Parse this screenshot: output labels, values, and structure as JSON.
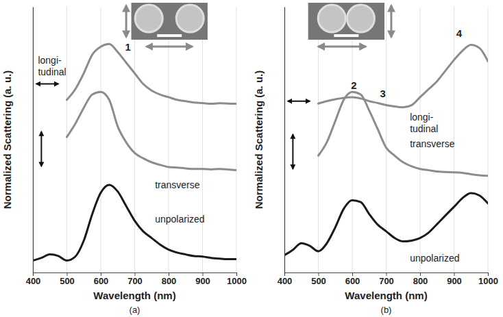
{
  "chart_data": [
    {
      "type": "line",
      "panel_label": "(a)",
      "x_label": "Wavelength (nm)",
      "y_label": "Normalized Scattering (a. u.)",
      "x": [
        400,
        425,
        450,
        475,
        500,
        525,
        550,
        575,
        600,
        625,
        650,
        675,
        700,
        725,
        750,
        775,
        800,
        825,
        850,
        875,
        900,
        925,
        950,
        975,
        1000
      ],
      "series": [
        {
          "name": "longi-tudinal",
          "color": "#8c8c8c",
          "values": [
            null,
            null,
            null,
            null,
            6.5,
            6.9,
            7.5,
            8.2,
            8.5,
            8.6,
            8.3,
            7.9,
            7.5,
            7.1,
            6.85,
            6.7,
            6.6,
            6.5,
            6.45,
            6.4,
            6.38,
            6.35,
            6.37,
            6.36,
            6.35
          ]
        },
        {
          "name": "transverse",
          "color": "#8c8c8c",
          "values": [
            null,
            null,
            null,
            null,
            5.1,
            5.6,
            6.2,
            6.7,
            6.8,
            6.5,
            5.5,
            4.9,
            4.5,
            4.3,
            4.15,
            4.05,
            3.97,
            3.95,
            3.92,
            3.9,
            3.9,
            3.88,
            3.9,
            3.88,
            3.85
          ]
        },
        {
          "name": "unpolarized",
          "color": "#1a1a1a",
          "values": [
            0.45,
            0.55,
            0.68,
            0.62,
            0.45,
            0.6,
            1.2,
            2.2,
            3.0,
            3.3,
            3.05,
            2.5,
            1.95,
            1.55,
            1.3,
            1.05,
            0.86,
            0.75,
            0.68,
            0.62,
            0.6,
            0.55,
            0.52,
            0.5,
            0.5
          ]
        }
      ],
      "xlim": [
        400,
        1000
      ],
      "xticks": [
        400,
        500,
        600,
        700,
        800,
        900,
        1000
      ],
      "ylim": [
        0,
        10
      ],
      "grid": true,
      "tick_labels": "x",
      "line_style": "solid",
      "annotations": [
        {
          "text": "1",
          "x": 680,
          "y": 8.5
        }
      ]
    },
    {
      "type": "line",
      "panel_label": "(b)",
      "x_label": "Wavelength (nm)",
      "y_label": "Normalized Scattering (a. u.)",
      "x": [
        400,
        425,
        450,
        475,
        500,
        525,
        550,
        575,
        600,
        625,
        650,
        675,
        700,
        725,
        750,
        775,
        800,
        825,
        850,
        875,
        900,
        925,
        950,
        975,
        1000
      ],
      "series": [
        {
          "name": "longi-tudinal",
          "color": "#8c8c8c",
          "values": [
            null,
            null,
            null,
            null,
            6.36,
            6.45,
            6.52,
            6.57,
            6.6,
            6.55,
            6.45,
            6.38,
            6.3,
            6.25,
            6.22,
            6.3,
            6.6,
            6.9,
            7.2,
            7.6,
            8.0,
            8.35,
            8.57,
            8.45,
            7.95
          ]
        },
        {
          "name": "transverse",
          "color": "#8c8c8c",
          "values": [
            null,
            null,
            null,
            null,
            4.4,
            4.9,
            5.7,
            6.5,
            6.8,
            6.7,
            6.1,
            5.4,
            4.7,
            4.4,
            4.15,
            4.0,
            3.9,
            3.85,
            3.8,
            3.78,
            3.77,
            3.75,
            3.7,
            3.66,
            3.64
          ]
        },
        {
          "name": "unpolarized",
          "color": "#1a1a1a",
          "values": [
            0.65,
            0.85,
            1.1,
            1.0,
            0.8,
            1.1,
            1.7,
            2.4,
            2.72,
            2.65,
            2.2,
            1.8,
            1.55,
            1.3,
            1.17,
            1.2,
            1.3,
            1.5,
            1.82,
            2.15,
            2.47,
            2.8,
            2.99,
            2.9,
            2.6
          ]
        }
      ],
      "xlim": [
        400,
        1000
      ],
      "xticks": [
        400,
        500,
        600,
        700,
        800,
        900,
        1000
      ],
      "ylim": [
        0,
        10
      ],
      "grid": true,
      "tick_labels": "x",
      "line_style": "solid",
      "annotations": [
        {
          "text": "2",
          "x": 605,
          "y": 7.05
        },
        {
          "text": "3",
          "x": 690,
          "y": 6.75
        },
        {
          "text": "4",
          "x": 915,
          "y": 9.0
        }
      ]
    }
  ]
}
